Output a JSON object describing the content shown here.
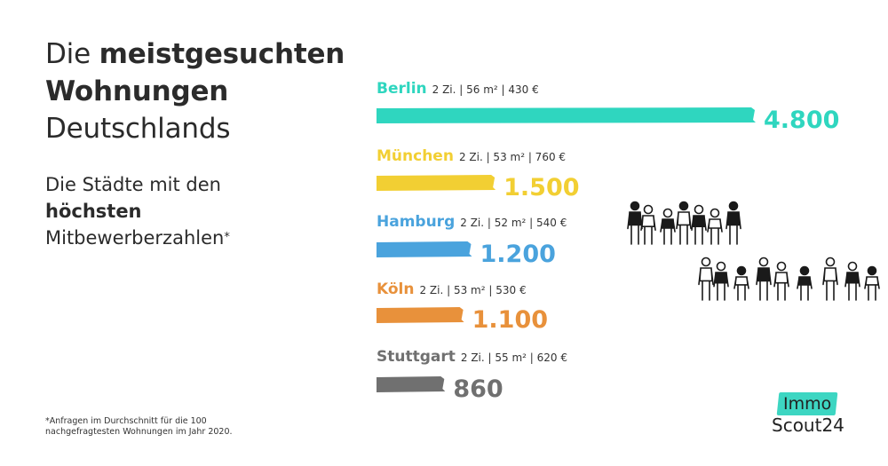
{
  "title": {
    "line1_prefix": "Die ",
    "line1_bold": "meistgesuchten",
    "line2_bold": "Wohnungen",
    "line3": "Deutschlands"
  },
  "subtitle": {
    "line1": "Die Städte mit den",
    "line2_bold": "höchsten",
    "line3": "Mitbewerberzahlen",
    "marker": "*"
  },
  "footnote": "*Anfragen im Durchschnitt für die 100 nachgefragtesten Wohnungen im Jahr 2020.",
  "logo": {
    "line1": "Immo",
    "line2": "Scout24"
  },
  "colors": {
    "Berlin": "#2fd6bf",
    "München": "#f2cf33",
    "Hamburg": "#4aa3dd",
    "Köln": "#e8913b",
    "Stuttgart": "#707070"
  },
  "chart_data": {
    "type": "bar",
    "orientation": "horizontal",
    "categories": [
      "Berlin",
      "München",
      "Hamburg",
      "Köln",
      "Stuttgart"
    ],
    "values": [
      4800,
      1500,
      1200,
      1100,
      860
    ],
    "value_labels": [
      "4.800",
      "1.500",
      "1.200",
      "1.100",
      "860"
    ],
    "details": [
      "2 Zi. | 56 m² | 430 €",
      "2 Zi. | 53 m² | 760 €",
      "2 Zi. | 52 m² | 540 €",
      "2 Zi. | 53 m² | 530 €",
      "2 Zi. | 55 m² | 620 €"
    ],
    "title": "Die meistgesuchten Wohnungen Deutschlands",
    "xlabel": "",
    "ylabel": "",
    "grid": false
  }
}
